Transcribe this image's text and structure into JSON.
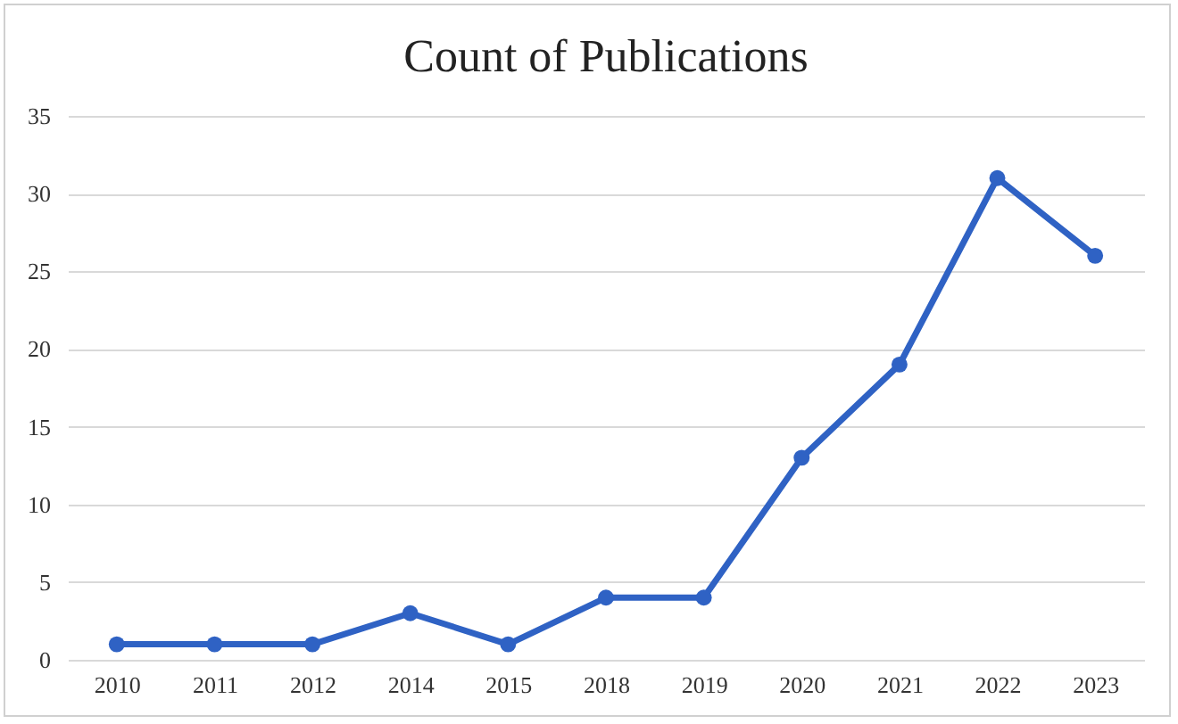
{
  "chart_data": {
    "type": "line",
    "title": "Count of Publications",
    "categories": [
      "2010",
      "2011",
      "2012",
      "2014",
      "2015",
      "2018",
      "2019",
      "2020",
      "2021",
      "2022",
      "2023"
    ],
    "series": [
      {
        "color": "#2f62c4",
        "values": [
          1,
          1,
          1,
          3,
          1,
          4,
          4,
          13,
          19,
          31,
          26
        ]
      }
    ],
    "ylim": [
      0,
      35
    ],
    "yticks": [
      0,
      5,
      10,
      15,
      20,
      25,
      30,
      35
    ],
    "grid": "y",
    "marker": "circle",
    "line_style": "solid"
  }
}
